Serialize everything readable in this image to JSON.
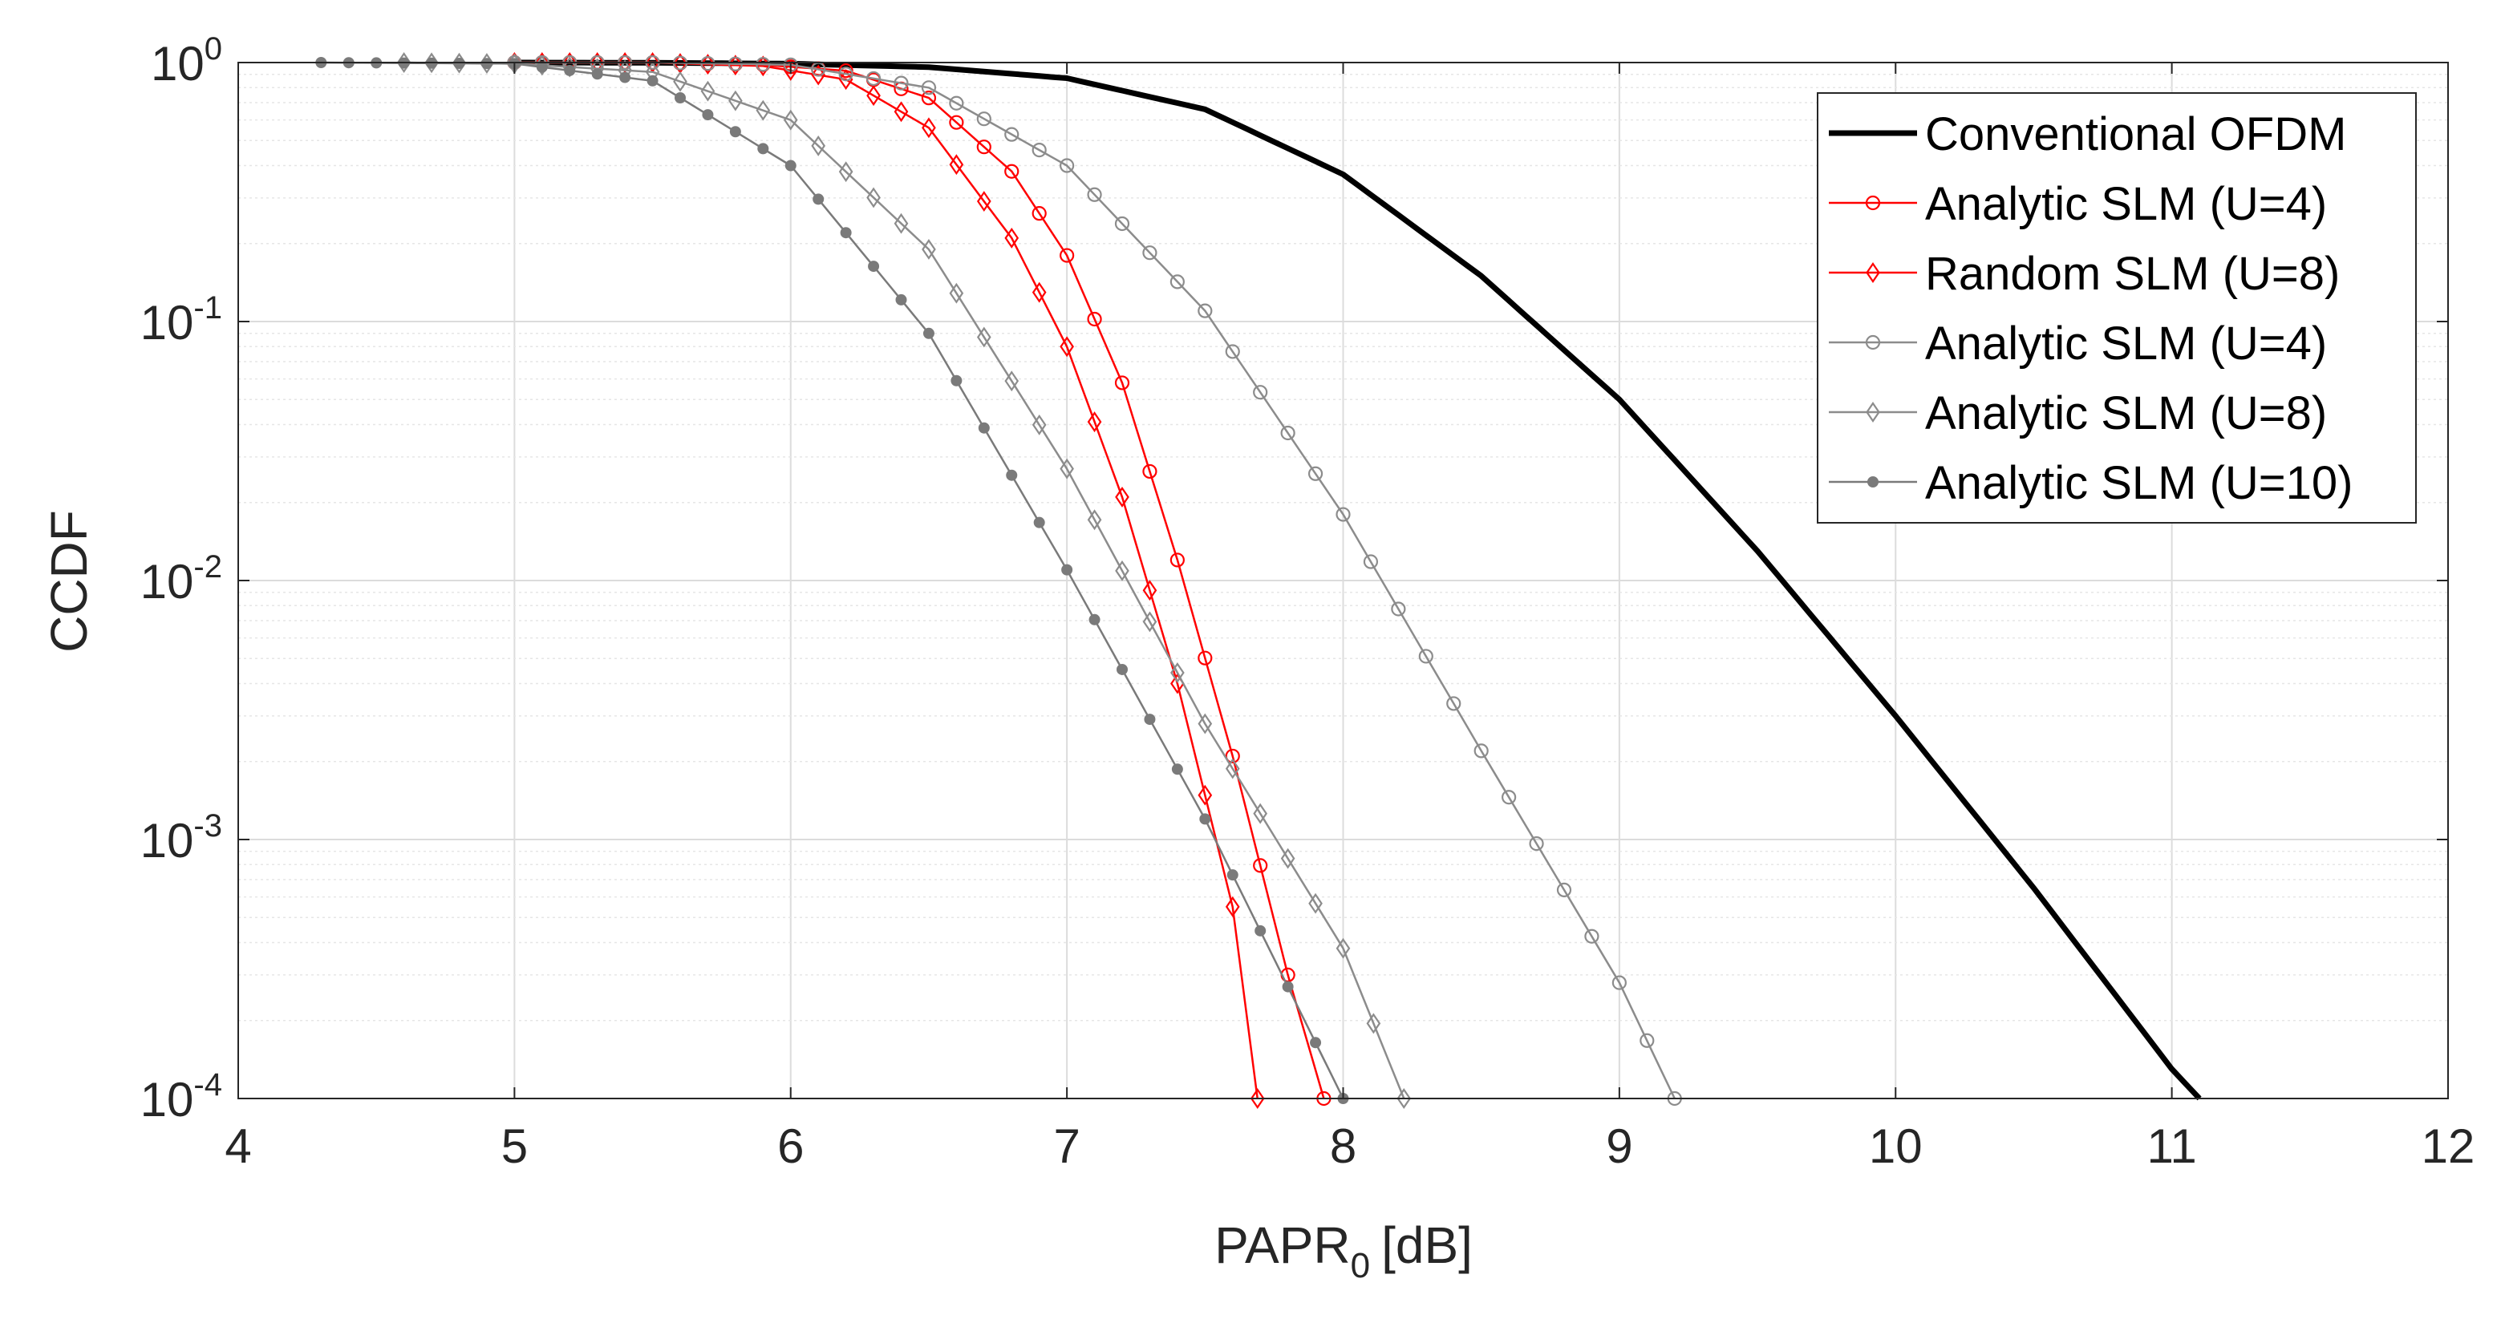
{
  "chart_data": {
    "type": "line",
    "xlabel": "PAPR",
    "xlabel_sub": "0",
    "xlabel_unit": "[dB]",
    "ylabel": "CCDF",
    "xlim": [
      4,
      12
    ],
    "ylim": [
      0.0001,
      1
    ],
    "yscale": "log",
    "grid": true,
    "legend_position": "top-right",
    "xticks": [
      4,
      5,
      6,
      7,
      8,
      9,
      10,
      11,
      12
    ],
    "xtick_labels": [
      "4",
      "5",
      "6",
      "7",
      "8",
      "9",
      "10",
      "11",
      "12"
    ],
    "yticks": [
      {
        "exp": 0,
        "base": "10",
        "sup": "0"
      },
      {
        "exp": -1,
        "base": "10",
        "sup": "-1"
      },
      {
        "exp": -2,
        "base": "10",
        "sup": "-2"
      },
      {
        "exp": -3,
        "base": "10",
        "sup": "-3"
      },
      {
        "exp": -4,
        "base": "10",
        "sup": "-4"
      }
    ],
    "series": [
      {
        "name": "Conventional OFDM",
        "color": "#000000",
        "marker": "none",
        "points": [
          [
            5.0,
            1.0
          ],
          [
            5.5,
            0.998
          ],
          [
            6.0,
            0.99
          ],
          [
            6.5,
            0.96
          ],
          [
            7.0,
            0.87
          ],
          [
            7.5,
            0.66
          ],
          [
            8.0,
            0.37
          ],
          [
            8.5,
            0.15
          ],
          [
            9.0,
            0.05
          ],
          [
            9.5,
            0.013
          ],
          [
            10.0,
            0.003
          ],
          [
            10.5,
            0.00065
          ],
          [
            11.0,
            0.00013
          ],
          [
            11.1,
            0.0001
          ]
        ]
      },
      {
        "name": "Analytic SLM (U=4)",
        "color": "#ff0000",
        "marker": "circle",
        "points": [
          [
            5.0,
            1.0
          ],
          [
            5.5,
            1.0
          ],
          [
            5.9,
            0.98
          ],
          [
            6.2,
            0.93
          ],
          [
            6.5,
            0.73
          ],
          [
            6.8,
            0.38
          ],
          [
            7.0,
            0.18
          ],
          [
            7.2,
            0.058
          ],
          [
            7.4,
            0.012
          ],
          [
            7.6,
            0.0021
          ],
          [
            7.8,
            0.0003
          ],
          [
            7.93,
            0.0001
          ]
        ]
      },
      {
        "name": "Random SLM (U=8)",
        "color": "#ff0000",
        "marker": "diamond",
        "points": [
          [
            5.0,
            1.0
          ],
          [
            5.5,
            1.0
          ],
          [
            5.9,
            0.97
          ],
          [
            6.2,
            0.86
          ],
          [
            6.5,
            0.56
          ],
          [
            6.8,
            0.21
          ],
          [
            7.0,
            0.08
          ],
          [
            7.2,
            0.021
          ],
          [
            7.4,
            0.004
          ],
          [
            7.6,
            0.00055
          ],
          [
            7.69,
            0.0001
          ]
        ]
      },
      {
        "name": "Analytic SLM (U=4)",
        "color": "#8c8c8c",
        "marker": "circle",
        "points": [
          [
            5.0,
            1.0
          ],
          [
            5.5,
            1.0
          ],
          [
            6.0,
            0.98
          ],
          [
            6.5,
            0.8
          ],
          [
            7.0,
            0.4
          ],
          [
            7.5,
            0.11
          ],
          [
            8.0,
            0.018
          ],
          [
            8.5,
            0.0022
          ],
          [
            9.0,
            0.00028
          ],
          [
            9.2,
            0.0001
          ]
        ]
      },
      {
        "name": "Analytic SLM (U=8)",
        "color": "#8c8c8c",
        "marker": "diamond",
        "points": [
          [
            4.6,
            1.0
          ],
          [
            5.0,
            0.99
          ],
          [
            5.5,
            0.92
          ],
          [
            6.0,
            0.6
          ],
          [
            6.5,
            0.19
          ],
          [
            7.0,
            0.027
          ],
          [
            7.5,
            0.0028
          ],
          [
            8.0,
            0.00038
          ],
          [
            8.22,
            0.0001
          ]
        ]
      },
      {
        "name": "Analytic SLM (U=10)",
        "color": "#7a7a7a",
        "marker": "dot",
        "points": [
          [
            4.3,
            1.0
          ],
          [
            5.0,
            0.99
          ],
          [
            5.5,
            0.85
          ],
          [
            6.0,
            0.4
          ],
          [
            6.5,
            0.09
          ],
          [
            7.0,
            0.011
          ],
          [
            7.5,
            0.0012
          ],
          [
            8.0,
            0.0001
          ]
        ]
      }
    ]
  }
}
